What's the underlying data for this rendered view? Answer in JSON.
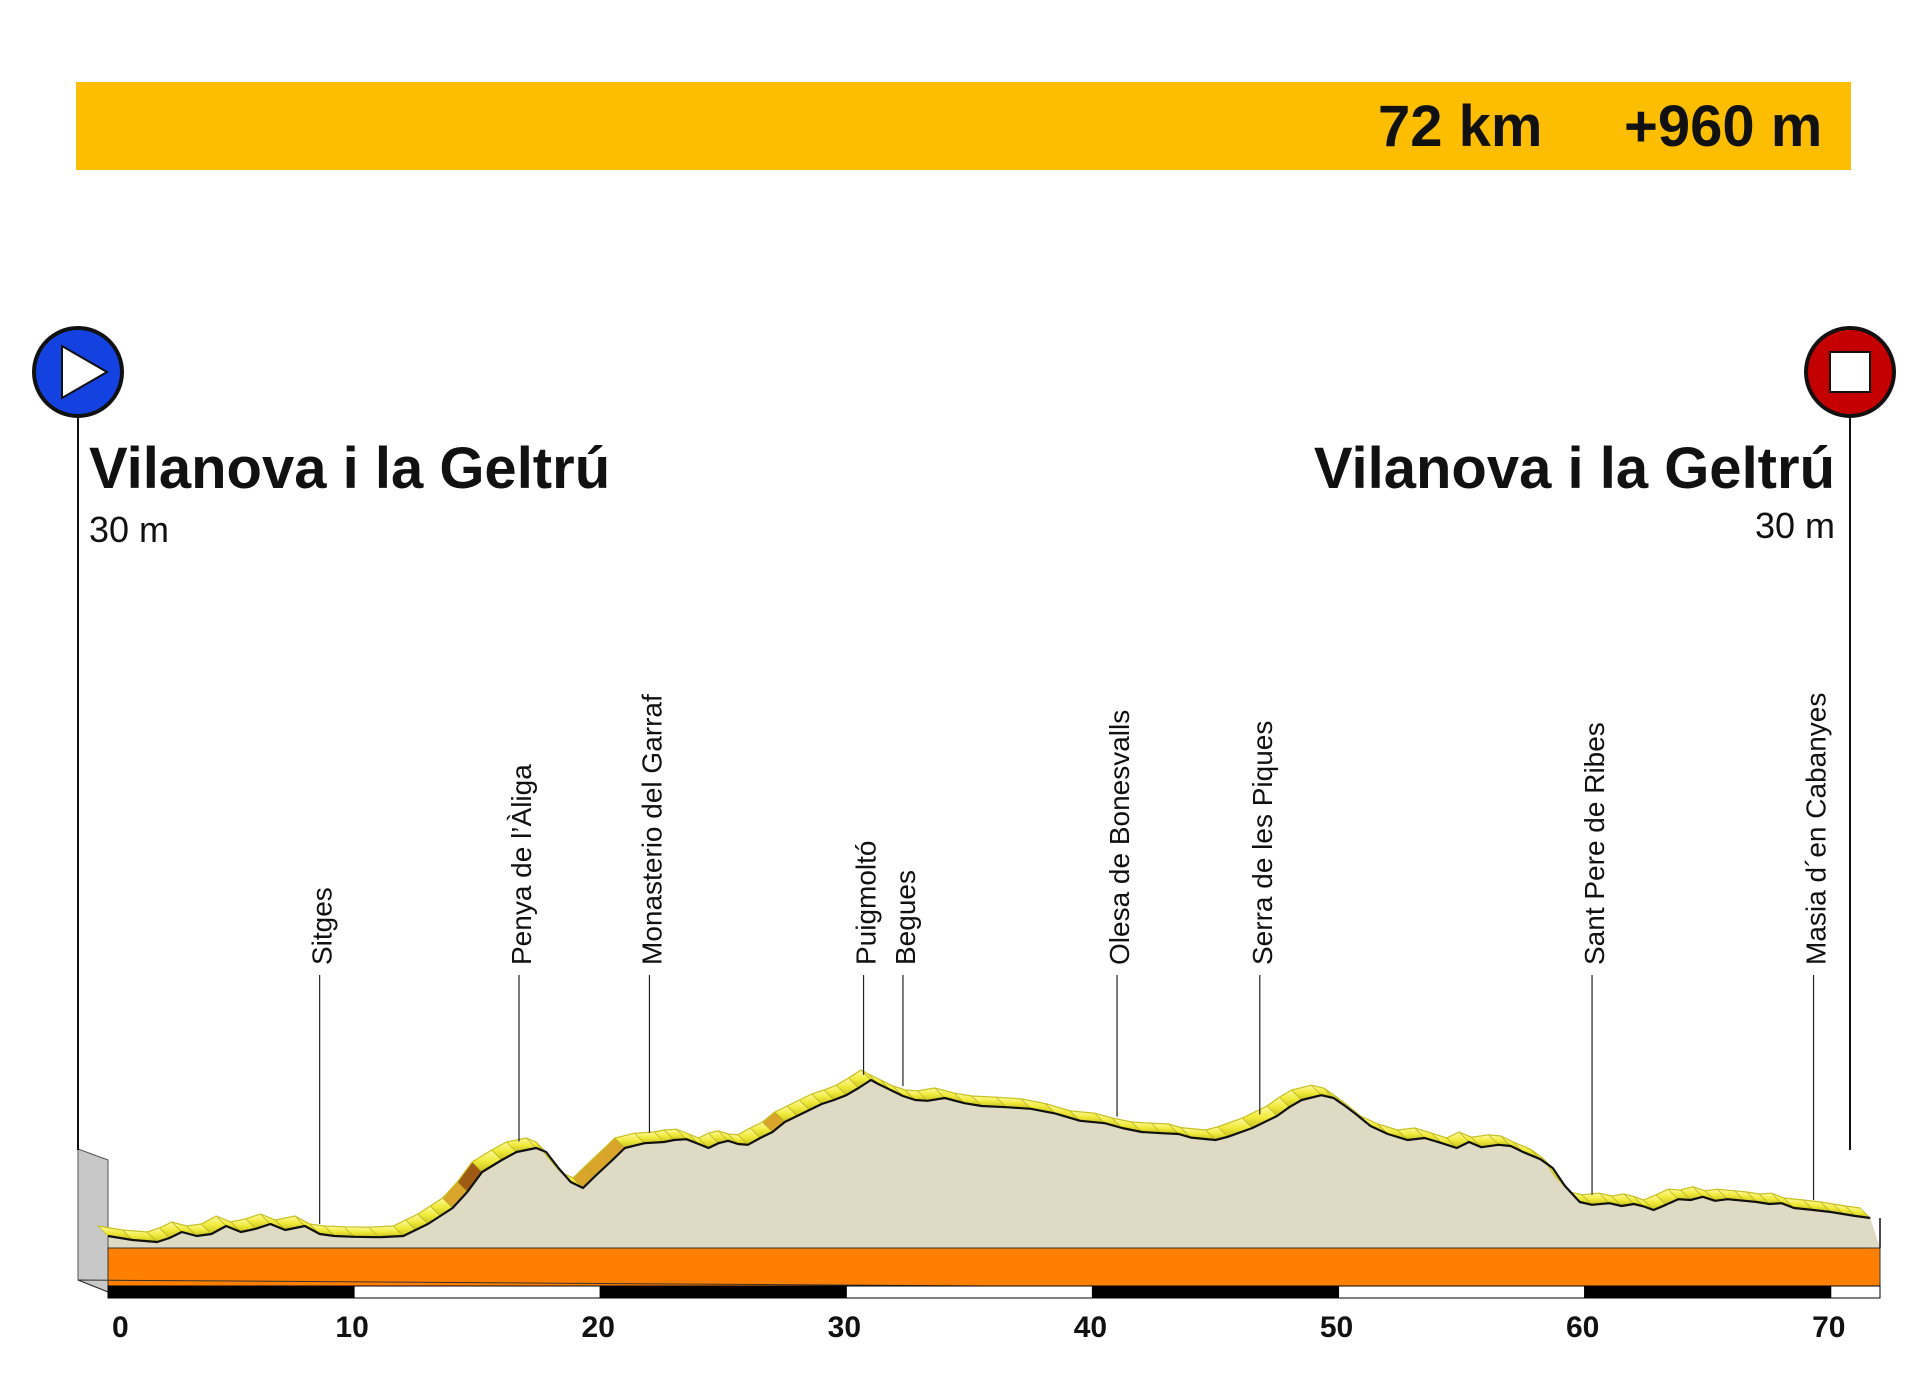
{
  "header": {
    "distance": "72 km",
    "climb": "+960 m",
    "color": "#FDBD00"
  },
  "start": {
    "name": "Vilanova i la Geltrú",
    "altitude": "30 m",
    "icon": "play-icon",
    "color": "#1442E0"
  },
  "finish": {
    "name": "Vilanova i la Geltrú",
    "altitude": "30 m",
    "icon": "stop-icon",
    "color": "#C40000"
  },
  "chart_data": {
    "type": "area",
    "xlabel": "",
    "ylabel": "",
    "xlim": [
      0,
      72
    ],
    "ylim": [
      0,
      650
    ],
    "x_ticks": [
      0,
      10,
      20,
      30,
      40,
      50,
      60,
      70
    ],
    "profile": [
      [
        0,
        30
      ],
      [
        1,
        20
      ],
      [
        2,
        15
      ],
      [
        2.5,
        25
      ],
      [
        3,
        40
      ],
      [
        3.6,
        30
      ],
      [
        4.2,
        35
      ],
      [
        4.8,
        55
      ],
      [
        5.4,
        40
      ],
      [
        6,
        48
      ],
      [
        6.6,
        60
      ],
      [
        7.2,
        45
      ],
      [
        8,
        55
      ],
      [
        8.6,
        35
      ],
      [
        9.2,
        30
      ],
      [
        10,
        28
      ],
      [
        11,
        27
      ],
      [
        12,
        30
      ],
      [
        12.5,
        45
      ],
      [
        13,
        60
      ],
      [
        13.5,
        80
      ],
      [
        14,
        100
      ],
      [
        14.6,
        140
      ],
      [
        15.2,
        190
      ],
      [
        16,
        220
      ],
      [
        16.6,
        240
      ],
      [
        17.4,
        250
      ],
      [
        17.8,
        240
      ],
      [
        18.3,
        200
      ],
      [
        18.8,
        165
      ],
      [
        19.3,
        150
      ],
      [
        19.8,
        180
      ],
      [
        20.5,
        220
      ],
      [
        21,
        250
      ],
      [
        21.8,
        262
      ],
      [
        22.6,
        265
      ],
      [
        23,
        270
      ],
      [
        23.5,
        272
      ],
      [
        24,
        260
      ],
      [
        24.4,
        250
      ],
      [
        24.8,
        262
      ],
      [
        25.2,
        268
      ],
      [
        25.6,
        260
      ],
      [
        26,
        258
      ],
      [
        26.5,
        275
      ],
      [
        27,
        290
      ],
      [
        27.5,
        315
      ],
      [
        28,
        330
      ],
      [
        28.5,
        345
      ],
      [
        29,
        360
      ],
      [
        29.5,
        370
      ],
      [
        30,
        382
      ],
      [
        30.5,
        400
      ],
      [
        31,
        420
      ],
      [
        31.3,
        410
      ],
      [
        31.8,
        395
      ],
      [
        32.3,
        380
      ],
      [
        32.8,
        370
      ],
      [
        33.3,
        368
      ],
      [
        34,
        375
      ],
      [
        34.8,
        362
      ],
      [
        35.5,
        355
      ],
      [
        36.5,
        352
      ],
      [
        37.5,
        348
      ],
      [
        38.5,
        336
      ],
      [
        39.5,
        318
      ],
      [
        40.5,
        312
      ],
      [
        41.2,
        300
      ],
      [
        42,
        290
      ],
      [
        42.8,
        287
      ],
      [
        43.5,
        285
      ],
      [
        44,
        276
      ],
      [
        45,
        270
      ],
      [
        45.5,
        278
      ],
      [
        46.5,
        300
      ],
      [
        47.5,
        330
      ],
      [
        48,
        352
      ],
      [
        48.5,
        370
      ],
      [
        49.3,
        382
      ],
      [
        49.8,
        375
      ],
      [
        50.2,
        358
      ],
      [
        50.7,
        335
      ],
      [
        51.3,
        305
      ],
      [
        52,
        285
      ],
      [
        52.8,
        270
      ],
      [
        53.5,
        275
      ],
      [
        54.2,
        262
      ],
      [
        54.8,
        250
      ],
      [
        55.3,
        265
      ],
      [
        55.8,
        252
      ],
      [
        56.5,
        258
      ],
      [
        57,
        255
      ],
      [
        57.5,
        240
      ],
      [
        58.2,
        222
      ],
      [
        58.7,
        200
      ],
      [
        59.2,
        155
      ],
      [
        59.8,
        115
      ],
      [
        60.3,
        108
      ],
      [
        61,
        112
      ],
      [
        61.5,
        105
      ],
      [
        62,
        110
      ],
      [
        62.4,
        104
      ],
      [
        62.8,
        95
      ],
      [
        63.3,
        108
      ],
      [
        63.8,
        122
      ],
      [
        64.3,
        120
      ],
      [
        64.8,
        128
      ],
      [
        65.3,
        118
      ],
      [
        65.8,
        122
      ],
      [
        66.5,
        118
      ],
      [
        67,
        115
      ],
      [
        67.5,
        110
      ],
      [
        68,
        112
      ],
      [
        68.5,
        100
      ],
      [
        69.3,
        95
      ],
      [
        70,
        90
      ],
      [
        70.5,
        85
      ],
      [
        71,
        80
      ],
      [
        71.6,
        75
      ]
    ],
    "waypoints": [
      {
        "km": 8.6,
        "label": "Sitges"
      },
      {
        "km": 16.7,
        "label": "Penya de l’Àliga"
      },
      {
        "km": 22,
        "label": "Monasterio del Garraf"
      },
      {
        "km": 30.7,
        "label": "Puigmoltó"
      },
      {
        "km": 32.3,
        "label": "Begues"
      },
      {
        "km": 41,
        "label": "Olesa de Bonesvalls"
      },
      {
        "km": 46.8,
        "label": "Serra de les Piques"
      },
      {
        "km": 60.3,
        "label": "Sant Pere de Ribes"
      },
      {
        "km": 69.3,
        "label": "Masia d´en Cabanyes"
      }
    ],
    "colors": {
      "terrain": "#DEDAC4",
      "ribbon": "#F0EB3C",
      "ribbon_steep": "#9E5A12",
      "base_band": "#FF7F00",
      "left_wall": "#C8C8C8"
    }
  }
}
